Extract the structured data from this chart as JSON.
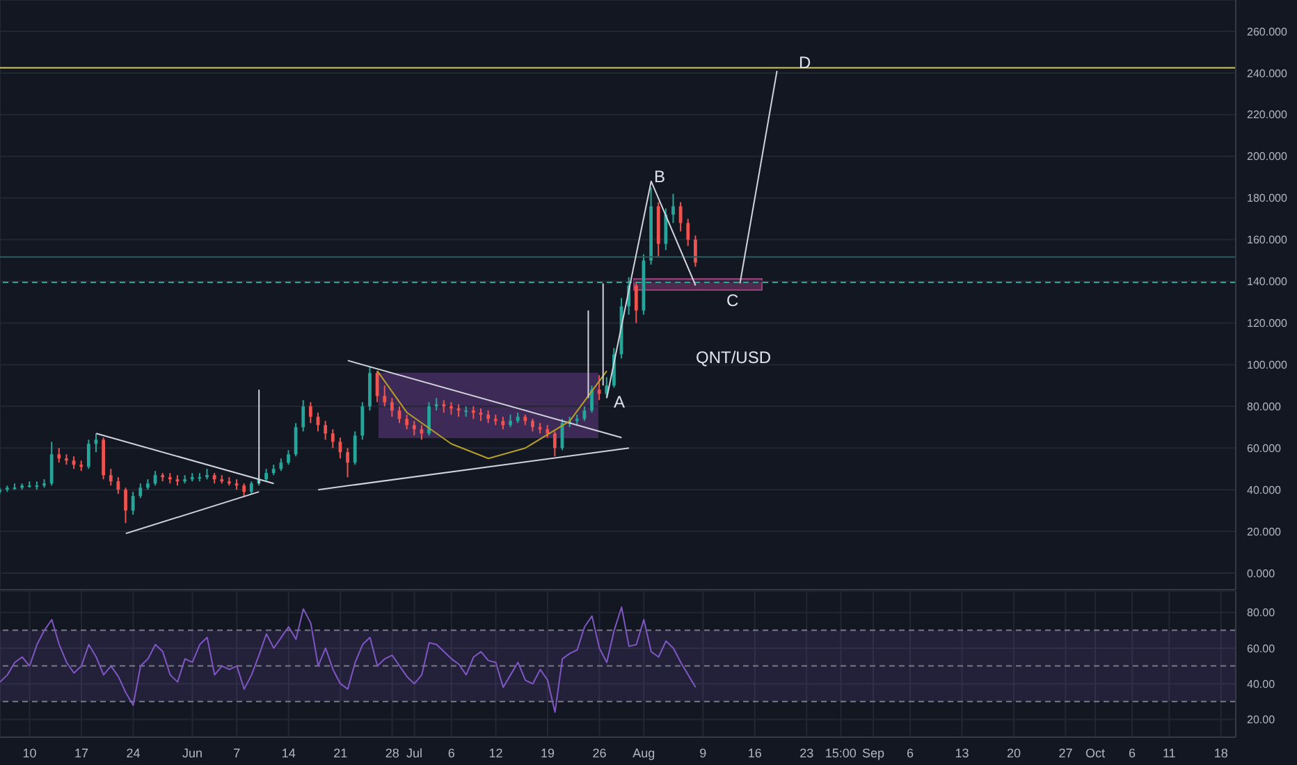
{
  "chart_data": [
    {
      "type": "candlestick",
      "title": "QNT/USD",
      "x": [
        "--05-06",
        "--05-07",
        "--05-08",
        "--05-09",
        "--05-10",
        "--05-11",
        "--05-12",
        "--05-13",
        "--05-14",
        "--05-15",
        "--05-16",
        "--05-17",
        "--05-18",
        "--05-19",
        "--05-20",
        "--05-21",
        "--05-22",
        "--05-23",
        "--05-24",
        "--05-25",
        "--05-26",
        "--05-27",
        "--05-28",
        "--05-29",
        "--05-30",
        "--05-31",
        "--06-01",
        "--06-02",
        "--06-03",
        "--06-04",
        "--06-05",
        "--06-06",
        "--06-07",
        "--06-08",
        "--06-09",
        "--06-10",
        "--06-11",
        "--06-12",
        "--06-13",
        "--06-14",
        "--06-15",
        "--06-16",
        "--06-17",
        "--06-18",
        "--06-19",
        "--06-20",
        "--06-21",
        "--06-22",
        "--06-23",
        "--06-24",
        "--06-25",
        "--06-26",
        "--06-27",
        "--06-28",
        "--06-29",
        "--06-30",
        "--07-01",
        "--07-02",
        "--07-03",
        "--07-04",
        "--07-05",
        "--07-06",
        "--07-07",
        "--07-08",
        "--07-09",
        "--07-10",
        "--07-11",
        "--07-12",
        "--07-13",
        "--07-14",
        "--07-15",
        "--07-16",
        "--07-17",
        "--07-18",
        "--07-19",
        "--07-20",
        "--07-21",
        "--07-22",
        "--07-23",
        "--07-24",
        "--07-25",
        "--07-26",
        "--07-27",
        "--07-28",
        "--07-29",
        "--07-30",
        "--07-31",
        "--08-01",
        "--08-02",
        "--08-03",
        "--08-04",
        "--08-05",
        "--08-06",
        "--08-07",
        "--08-08"
      ],
      "ohlc": [
        [
          39,
          41,
          38,
          40
        ],
        [
          40,
          42,
          39,
          41
        ],
        [
          41,
          43,
          40,
          41
        ],
        [
          41,
          43,
          40,
          42
        ],
        [
          42,
          44,
          41,
          42
        ],
        [
          42,
          44,
          40,
          42
        ],
        [
          42,
          45,
          41,
          43
        ],
        [
          43,
          63,
          42,
          57
        ],
        [
          57,
          60,
          53,
          55
        ],
        [
          55,
          57,
          52,
          54
        ],
        [
          54,
          56,
          50,
          52
        ],
        [
          52,
          54,
          49,
          51
        ],
        [
          51,
          64,
          50,
          62
        ],
        [
          62,
          67,
          58,
          64
        ],
        [
          64,
          65,
          45,
          47
        ],
        [
          47,
          50,
          42,
          44
        ],
        [
          44,
          46,
          38,
          40
        ],
        [
          40,
          41,
          24,
          30
        ],
        [
          30,
          39,
          28,
          37
        ],
        [
          37,
          43,
          36,
          41
        ],
        [
          41,
          45,
          40,
          43
        ],
        [
          43,
          49,
          42,
          47
        ],
        [
          47,
          48,
          44,
          46
        ],
        [
          46,
          48,
          43,
          45
        ],
        [
          45,
          47,
          42,
          44
        ],
        [
          44,
          47,
          43,
          45
        ],
        [
          45,
          48,
          44,
          46
        ],
        [
          46,
          48,
          44,
          46
        ],
        [
          46,
          50,
          45,
          47
        ],
        [
          47,
          48,
          43,
          45
        ],
        [
          45,
          47,
          43,
          44
        ],
        [
          44,
          46,
          42,
          43
        ],
        [
          43,
          45,
          40,
          42
        ],
        [
          42,
          43,
          37,
          39
        ],
        [
          39,
          44,
          38,
          43
        ],
        [
          43,
          47,
          42,
          45
        ],
        [
          45,
          50,
          44,
          48
        ],
        [
          48,
          52,
          47,
          50
        ],
        [
          50,
          55,
          49,
          53
        ],
        [
          53,
          59,
          52,
          57
        ],
        [
          57,
          72,
          56,
          70
        ],
        [
          70,
          83,
          68,
          80
        ],
        [
          80,
          82,
          72,
          75
        ],
        [
          75,
          77,
          68,
          71
        ],
        [
          71,
          73,
          64,
          67
        ],
        [
          67,
          69,
          60,
          63
        ],
        [
          63,
          65,
          55,
          58
        ],
        [
          58,
          60,
          46,
          53
        ],
        [
          53,
          68,
          52,
          66
        ],
        [
          66,
          82,
          64,
          80
        ],
        [
          80,
          99,
          78,
          96
        ],
        [
          96,
          97,
          82,
          85
        ],
        [
          85,
          90,
          80,
          82
        ],
        [
          82,
          84,
          75,
          78
        ],
        [
          78,
          80,
          72,
          74
        ],
        [
          74,
          76,
          69,
          71
        ],
        [
          71,
          73,
          66,
          69
        ],
        [
          69,
          71,
          64,
          67
        ],
        [
          67,
          82,
          66,
          80
        ],
        [
          80,
          84,
          78,
          81
        ],
        [
          81,
          83,
          77,
          80
        ],
        [
          80,
          82,
          76,
          79
        ],
        [
          79,
          81,
          75,
          78
        ],
        [
          78,
          80,
          75,
          78
        ],
        [
          78,
          80,
          74,
          77
        ],
        [
          77,
          79,
          73,
          76
        ],
        [
          76,
          78,
          72,
          74
        ],
        [
          74,
          76,
          71,
          73
        ],
        [
          73,
          75,
          69,
          71
        ],
        [
          71,
          76,
          70,
          73
        ],
        [
          73,
          77,
          72,
          75
        ],
        [
          75,
          76,
          71,
          73
        ],
        [
          73,
          74,
          68,
          70
        ],
        [
          70,
          72,
          67,
          69
        ],
        [
          69,
          71,
          65,
          67
        ],
        [
          67,
          68,
          56,
          60
        ],
        [
          60,
          74,
          59,
          72
        ],
        [
          72,
          75,
          70,
          73
        ],
        [
          73,
          76,
          71,
          74
        ],
        [
          74,
          80,
          73,
          78
        ],
        [
          78,
          90,
          77,
          88
        ],
        [
          88,
          95,
          83,
          86
        ],
        [
          86,
          94,
          84,
          90
        ],
        [
          90,
          108,
          89,
          105
        ],
        [
          105,
          132,
          103,
          128
        ],
        [
          128,
          142,
          124,
          138
        ],
        [
          138,
          140,
          120,
          126
        ],
        [
          126,
          153,
          124,
          150
        ],
        [
          150,
          185,
          148,
          176
        ],
        [
          176,
          178,
          152,
          158
        ],
        [
          158,
          175,
          155,
          172
        ],
        [
          172,
          182,
          168,
          176
        ],
        [
          176,
          178,
          164,
          168
        ],
        [
          168,
          170,
          157,
          160
        ],
        [
          160,
          162,
          147,
          149
        ]
      ],
      "series": [
        {
          "type": "line",
          "x": [
            "--05-19",
            "--06-12"
          ],
          "values": [
            67,
            43
          ],
          "color": "#d1d4dc"
        },
        {
          "type": "line",
          "x": [
            "--05-23",
            "--06-10"
          ],
          "values": [
            19,
            39
          ],
          "color": "#d1d4dc"
        },
        {
          "type": "line",
          "x": [
            "--06-10",
            "--06-10"
          ],
          "values": [
            43,
            88
          ],
          "color": "#d1d4dc"
        },
        {
          "type": "line",
          "x": [
            "--06-22",
            "--07-29"
          ],
          "values": [
            102,
            65
          ],
          "color": "#d1d4dc"
        },
        {
          "type": "line",
          "x": [
            "--06-18",
            "--07-30"
          ],
          "values": [
            40,
            60
          ],
          "color": "#d1d4dc"
        },
        {
          "type": "line",
          "x": [
            "--06-26",
            "--06-30",
            "--07-06",
            "--07-11",
            "--07-16",
            "--07-22",
            "--07-27"
          ],
          "values": [
            97,
            77,
            62,
            55,
            60,
            73,
            97
          ],
          "color": "#b59f2a"
        },
        {
          "type": "line",
          "x": [
            "--07-24T12:00",
            "--07-24T12:00"
          ],
          "values": [
            84,
            126
          ],
          "color": "#d1d4dc"
        },
        {
          "type": "line",
          "x": [
            "--07-26T12:00",
            "--07-26T12:00"
          ],
          "values": [
            90,
            139
          ],
          "color": "#d1d4dc"
        },
        {
          "type": "line",
          "x": [
            "--07-27",
            "--08-02",
            "--08-08"
          ],
          "values": [
            84,
            188,
            138
          ],
          "color": "#d1d4dc"
        },
        {
          "type": "line",
          "x": [
            "--08-14",
            "--08-19"
          ],
          "values": [
            139,
            241
          ],
          "color": "#d1d4dc"
        }
      ],
      "annotations": [
        "A",
        "B",
        "C",
        "D"
      ],
      "ref_lines": [
        {
          "axis": "y",
          "value": 242.5,
          "color": "#d4c95a"
        },
        {
          "axis": "y",
          "value": 151.7,
          "color": "#2a5f5f"
        },
        {
          "axis": "y",
          "value": 139.5,
          "color": "#26a69a",
          "line_style": "dashed"
        }
      ],
      "xlim": [
        "--05-06",
        "--10-20"
      ],
      "xticks": [
        {
          "value": "--05-10",
          "label": "10"
        },
        {
          "value": "--05-17",
          "label": "17"
        },
        {
          "value": "--05-24",
          "label": "24"
        },
        {
          "value": "--06-01",
          "label": "Jun"
        },
        {
          "value": "--06-07",
          "label": "7"
        },
        {
          "value": "--06-14",
          "label": "14"
        },
        {
          "value": "--06-21",
          "label": "21"
        },
        {
          "value": "--06-28",
          "label": "28"
        },
        {
          "value": "--07-01",
          "label": "Jul"
        },
        {
          "value": "--07-06",
          "label": "6"
        },
        {
          "value": "--07-12",
          "label": "12"
        },
        {
          "value": "--07-19",
          "label": "19"
        },
        {
          "value": "--07-26",
          "label": "26"
        },
        {
          "value": "--08-01",
          "label": "Aug"
        },
        {
          "value": "--08-09",
          "label": "9"
        },
        {
          "value": "--08-16",
          "label": "16"
        },
        {
          "value": "--08-23",
          "label": "23"
        },
        {
          "value": "--08-27T15:00",
          "label": "15:00"
        },
        {
          "value": "--09-01",
          "label": "Sep"
        },
        {
          "value": "--09-06",
          "label": "6"
        },
        {
          "value": "--09-13",
          "label": "13"
        },
        {
          "value": "--09-20",
          "label": "20"
        },
        {
          "value": "--09-27",
          "label": "27"
        },
        {
          "value": "--10-01",
          "label": "Oct"
        },
        {
          "value": "--10-06",
          "label": "6"
        },
        {
          "value": "--10-11",
          "label": "11"
        },
        {
          "value": "--10-18",
          "label": "18"
        }
      ],
      "ylim": [
        -8,
        275
      ],
      "yticks": [
        {
          "value": 0,
          "label": "0.000"
        },
        {
          "value": 20,
          "label": "20.000"
        },
        {
          "value": 40,
          "label": "40.000"
        },
        {
          "value": 60,
          "label": "60.000"
        },
        {
          "value": 80,
          "label": "80.000"
        },
        {
          "value": 100,
          "label": "100.000"
        },
        {
          "value": 120,
          "label": "120.000"
        },
        {
          "value": 140,
          "label": "140.000"
        },
        {
          "value": 160,
          "label": "160.000"
        },
        {
          "value": 180,
          "label": "180.000"
        },
        {
          "value": 200,
          "label": "200.000"
        },
        {
          "value": 220,
          "label": "220.000"
        },
        {
          "value": 240,
          "label": "240.000"
        },
        {
          "value": 260,
          "label": "260.000"
        }
      ],
      "tick_labels": "y",
      "grid": true
    },
    {
      "type": "line",
      "x": [
        "--05-06",
        "--05-07",
        "--05-08",
        "--05-09",
        "--05-10",
        "--05-11",
        "--05-12",
        "--05-13",
        "--05-14",
        "--05-15",
        "--05-16",
        "--05-17",
        "--05-18",
        "--05-19",
        "--05-20",
        "--05-21",
        "--05-22",
        "--05-23",
        "--05-24",
        "--05-25",
        "--05-26",
        "--05-27",
        "--05-28",
        "--05-29",
        "--05-30",
        "--05-31",
        "--06-01",
        "--06-02",
        "--06-03",
        "--06-04",
        "--06-05",
        "--06-06",
        "--06-07",
        "--06-08",
        "--06-09",
        "--06-10",
        "--06-11",
        "--06-12",
        "--06-13",
        "--06-14",
        "--06-15",
        "--06-16",
        "--06-17",
        "--06-18",
        "--06-19",
        "--06-20",
        "--06-21",
        "--06-22",
        "--06-23",
        "--06-24",
        "--06-25",
        "--06-26",
        "--06-27",
        "--06-28",
        "--06-29",
        "--06-30",
        "--07-01",
        "--07-02",
        "--07-03",
        "--07-04",
        "--07-05",
        "--07-06",
        "--07-07",
        "--07-08",
        "--07-09",
        "--07-10",
        "--07-11",
        "--07-12",
        "--07-13",
        "--07-14",
        "--07-15",
        "--07-16",
        "--07-17",
        "--07-18",
        "--07-19",
        "--07-20",
        "--07-21",
        "--07-22",
        "--07-23",
        "--07-24",
        "--07-25",
        "--07-26",
        "--07-27",
        "--07-28",
        "--07-29",
        "--07-30",
        "--07-31",
        "--08-01",
        "--08-02",
        "--08-03",
        "--08-04",
        "--08-05",
        "--08-06",
        "--08-07",
        "--08-08"
      ],
      "series": [
        {
          "color": "#7e57c2",
          "values": [
            41,
            45,
            52,
            55,
            50,
            62,
            70,
            76,
            62,
            52,
            46,
            50,
            62,
            55,
            45,
            50,
            44,
            35,
            28,
            50,
            54,
            62,
            58,
            45,
            41,
            54,
            52,
            62,
            66,
            45,
            50,
            48,
            50,
            37,
            45,
            56,
            68,
            60,
            66,
            72,
            65,
            82,
            74,
            50,
            60,
            48,
            40,
            37,
            52,
            62,
            66,
            50,
            54,
            56,
            50,
            44,
            40,
            45,
            63,
            62,
            58,
            54,
            51,
            45,
            55,
            58,
            53,
            52,
            38,
            45,
            52,
            42,
            40,
            48,
            42,
            24,
            54,
            57,
            59,
            72,
            78,
            60,
            52,
            70,
            83,
            61,
            62,
            76,
            58,
            55,
            64,
            60,
            52,
            45,
            38
          ]
        }
      ],
      "bands": [
        {
          "axis": "y",
          "from": 30,
          "to": 70,
          "color": "#7e57c2"
        }
      ],
      "ref_lines": [
        {
          "axis": "y",
          "value": 70,
          "color": "#787b86",
          "line_style": "dashed"
        },
        {
          "axis": "y",
          "value": 50,
          "color": "#787b86",
          "line_style": "dashed"
        },
        {
          "axis": "y",
          "value": 30,
          "color": "#787b86",
          "line_style": "dashed"
        }
      ],
      "xlim": [
        "--05-06",
        "--10-20"
      ],
      "xticks": [
        {
          "value": "--05-10",
          "label": "10"
        },
        {
          "value": "--05-17",
          "label": "17"
        },
        {
          "value": "--05-24",
          "label": "24"
        },
        {
          "value": "--06-01",
          "label": "Jun"
        },
        {
          "value": "--06-07",
          "label": "7"
        },
        {
          "value": "--06-14",
          "label": "14"
        },
        {
          "value": "--06-21",
          "label": "21"
        },
        {
          "value": "--06-28",
          "label": "28"
        },
        {
          "value": "--07-01",
          "label": "Jul"
        },
        {
          "value": "--07-06",
          "label": "6"
        },
        {
          "value": "--07-12",
          "label": "12"
        },
        {
          "value": "--07-19",
          "label": "19"
        },
        {
          "value": "--07-26",
          "label": "26"
        },
        {
          "value": "--08-01",
          "label": "Aug"
        },
        {
          "value": "--08-09",
          "label": "9"
        },
        {
          "value": "--08-16",
          "label": "16"
        },
        {
          "value": "--08-23",
          "label": "23"
        },
        {
          "value": "--08-27T15:00",
          "label": "15:00"
        },
        {
          "value": "--09-01",
          "label": "Sep"
        },
        {
          "value": "--09-06",
          "label": "6"
        },
        {
          "value": "--09-13",
          "label": "13"
        },
        {
          "value": "--09-20",
          "label": "20"
        },
        {
          "value": "--09-27",
          "label": "27"
        },
        {
          "value": "--10-01",
          "label": "Oct"
        },
        {
          "value": "--10-06",
          "label": "6"
        },
        {
          "value": "--10-11",
          "label": "11"
        },
        {
          "value": "--10-18",
          "label": "18"
        }
      ],
      "ylim": [
        10,
        92
      ],
      "yticks": [
        {
          "value": 20,
          "label": "20.00"
        },
        {
          "value": 40,
          "label": "40.00"
        },
        {
          "value": 60,
          "label": "60.00"
        },
        {
          "value": 80,
          "label": "80.00"
        }
      ],
      "grid": true
    }
  ]
}
